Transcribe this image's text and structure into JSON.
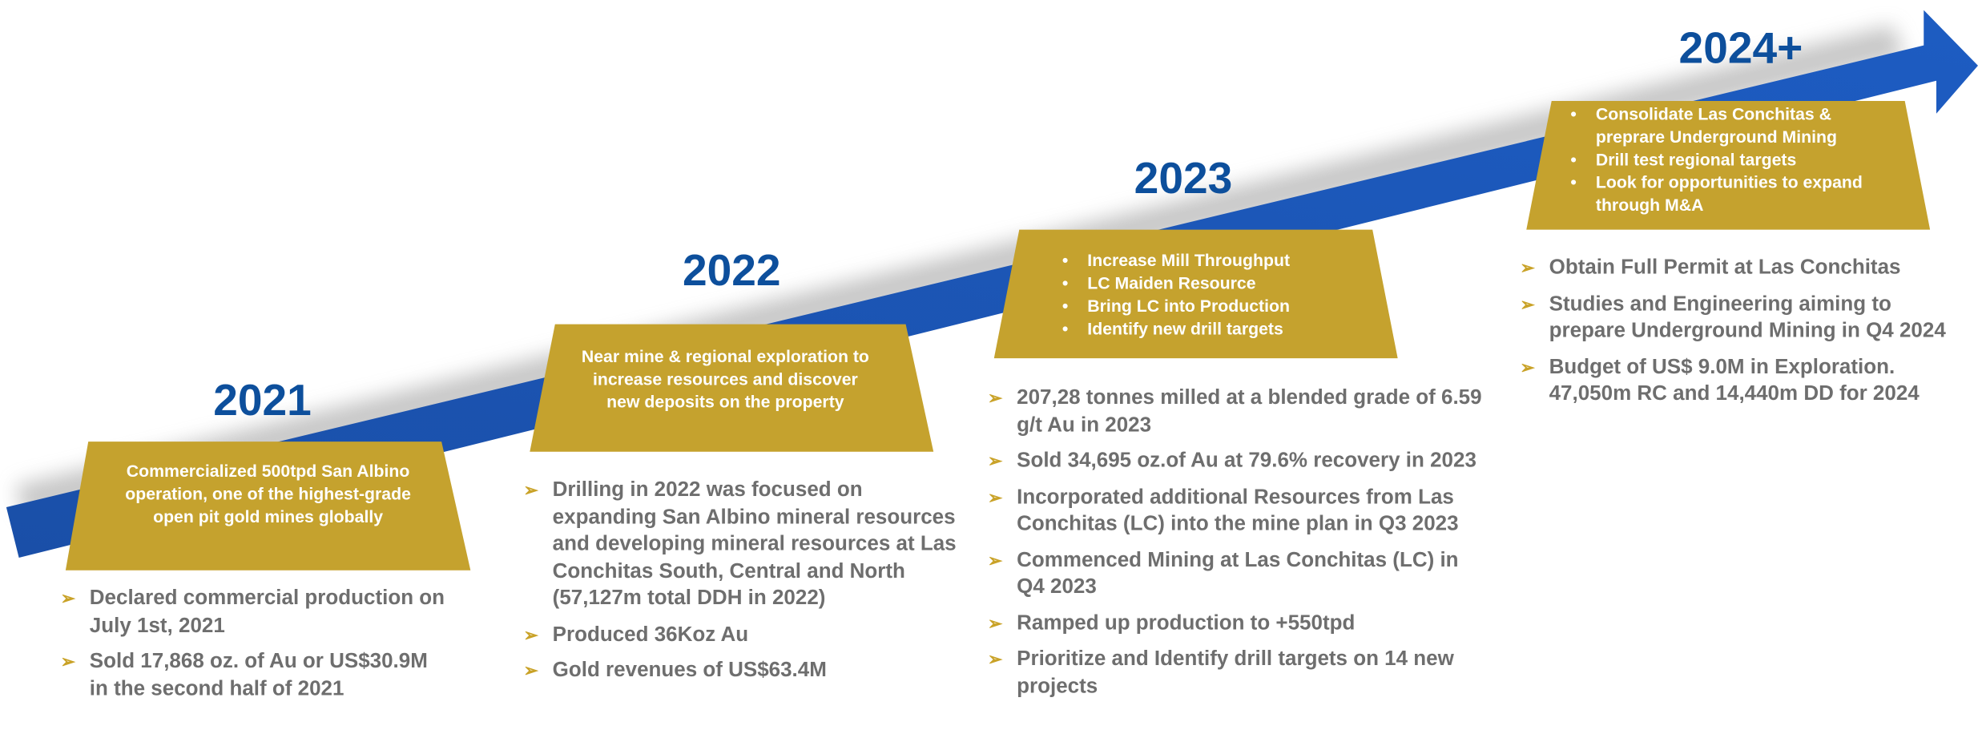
{
  "stages": [
    {
      "year": "2021",
      "box": {
        "text": "Commercialized 500tpd San Albino operation, one of the highest-grade open pit gold mines globally"
      },
      "bullets": [
        "Declared commercial production on July 1st, 2021",
        "Sold 17,868 oz. of Au or US$30.9M in the second half of 2021"
      ]
    },
    {
      "year": "2022",
      "box": {
        "text": "Near mine & regional exploration to increase resources and discover new deposits on the property"
      },
      "bullets": [
        "Drilling in 2022 was focused on expanding San Albino mineral resources and developing mineral resources at Las Conchitas South, Central and North (57,127m total DDH in 2022)",
        "Produced 36Koz Au",
        "Gold revenues of US$63.4M"
      ]
    },
    {
      "year": "2023",
      "box": {
        "items": [
          "Increase Mill Throughput",
          "LC Maiden Resource",
          "Bring LC into Production",
          "Identify new drill targets"
        ]
      },
      "bullets": [
        "207,28 tonnes milled at a blended grade of 6.59 g/t Au in 2023",
        "Sold 34,695 oz.of Au at 79.6% recovery in 2023",
        "Incorporated additional Resources from Las Conchitas (LC) into the mine plan in Q3 2023",
        "Commenced Mining at Las Conchitas (LC) in Q4 2023",
        "Ramped up production to +550tpd",
        "Prioritize and Identify drill targets on 14 new projects"
      ]
    },
    {
      "year": "2024+",
      "box": {
        "items": [
          "Consolidate Las Conchitas & preprare Underground Mining",
          "Drill test regional targets",
          "Look for opportunities to expand through M&A"
        ]
      },
      "bullets": [
        "Obtain Full Permit at Las Conchitas",
        "Studies and Engineering aiming to prepare Underground Mining in Q4 2024",
        "Budget of US$ 9.0M in Exploration. 47,050m RC and 14,440m DD for 2024"
      ]
    }
  ]
}
